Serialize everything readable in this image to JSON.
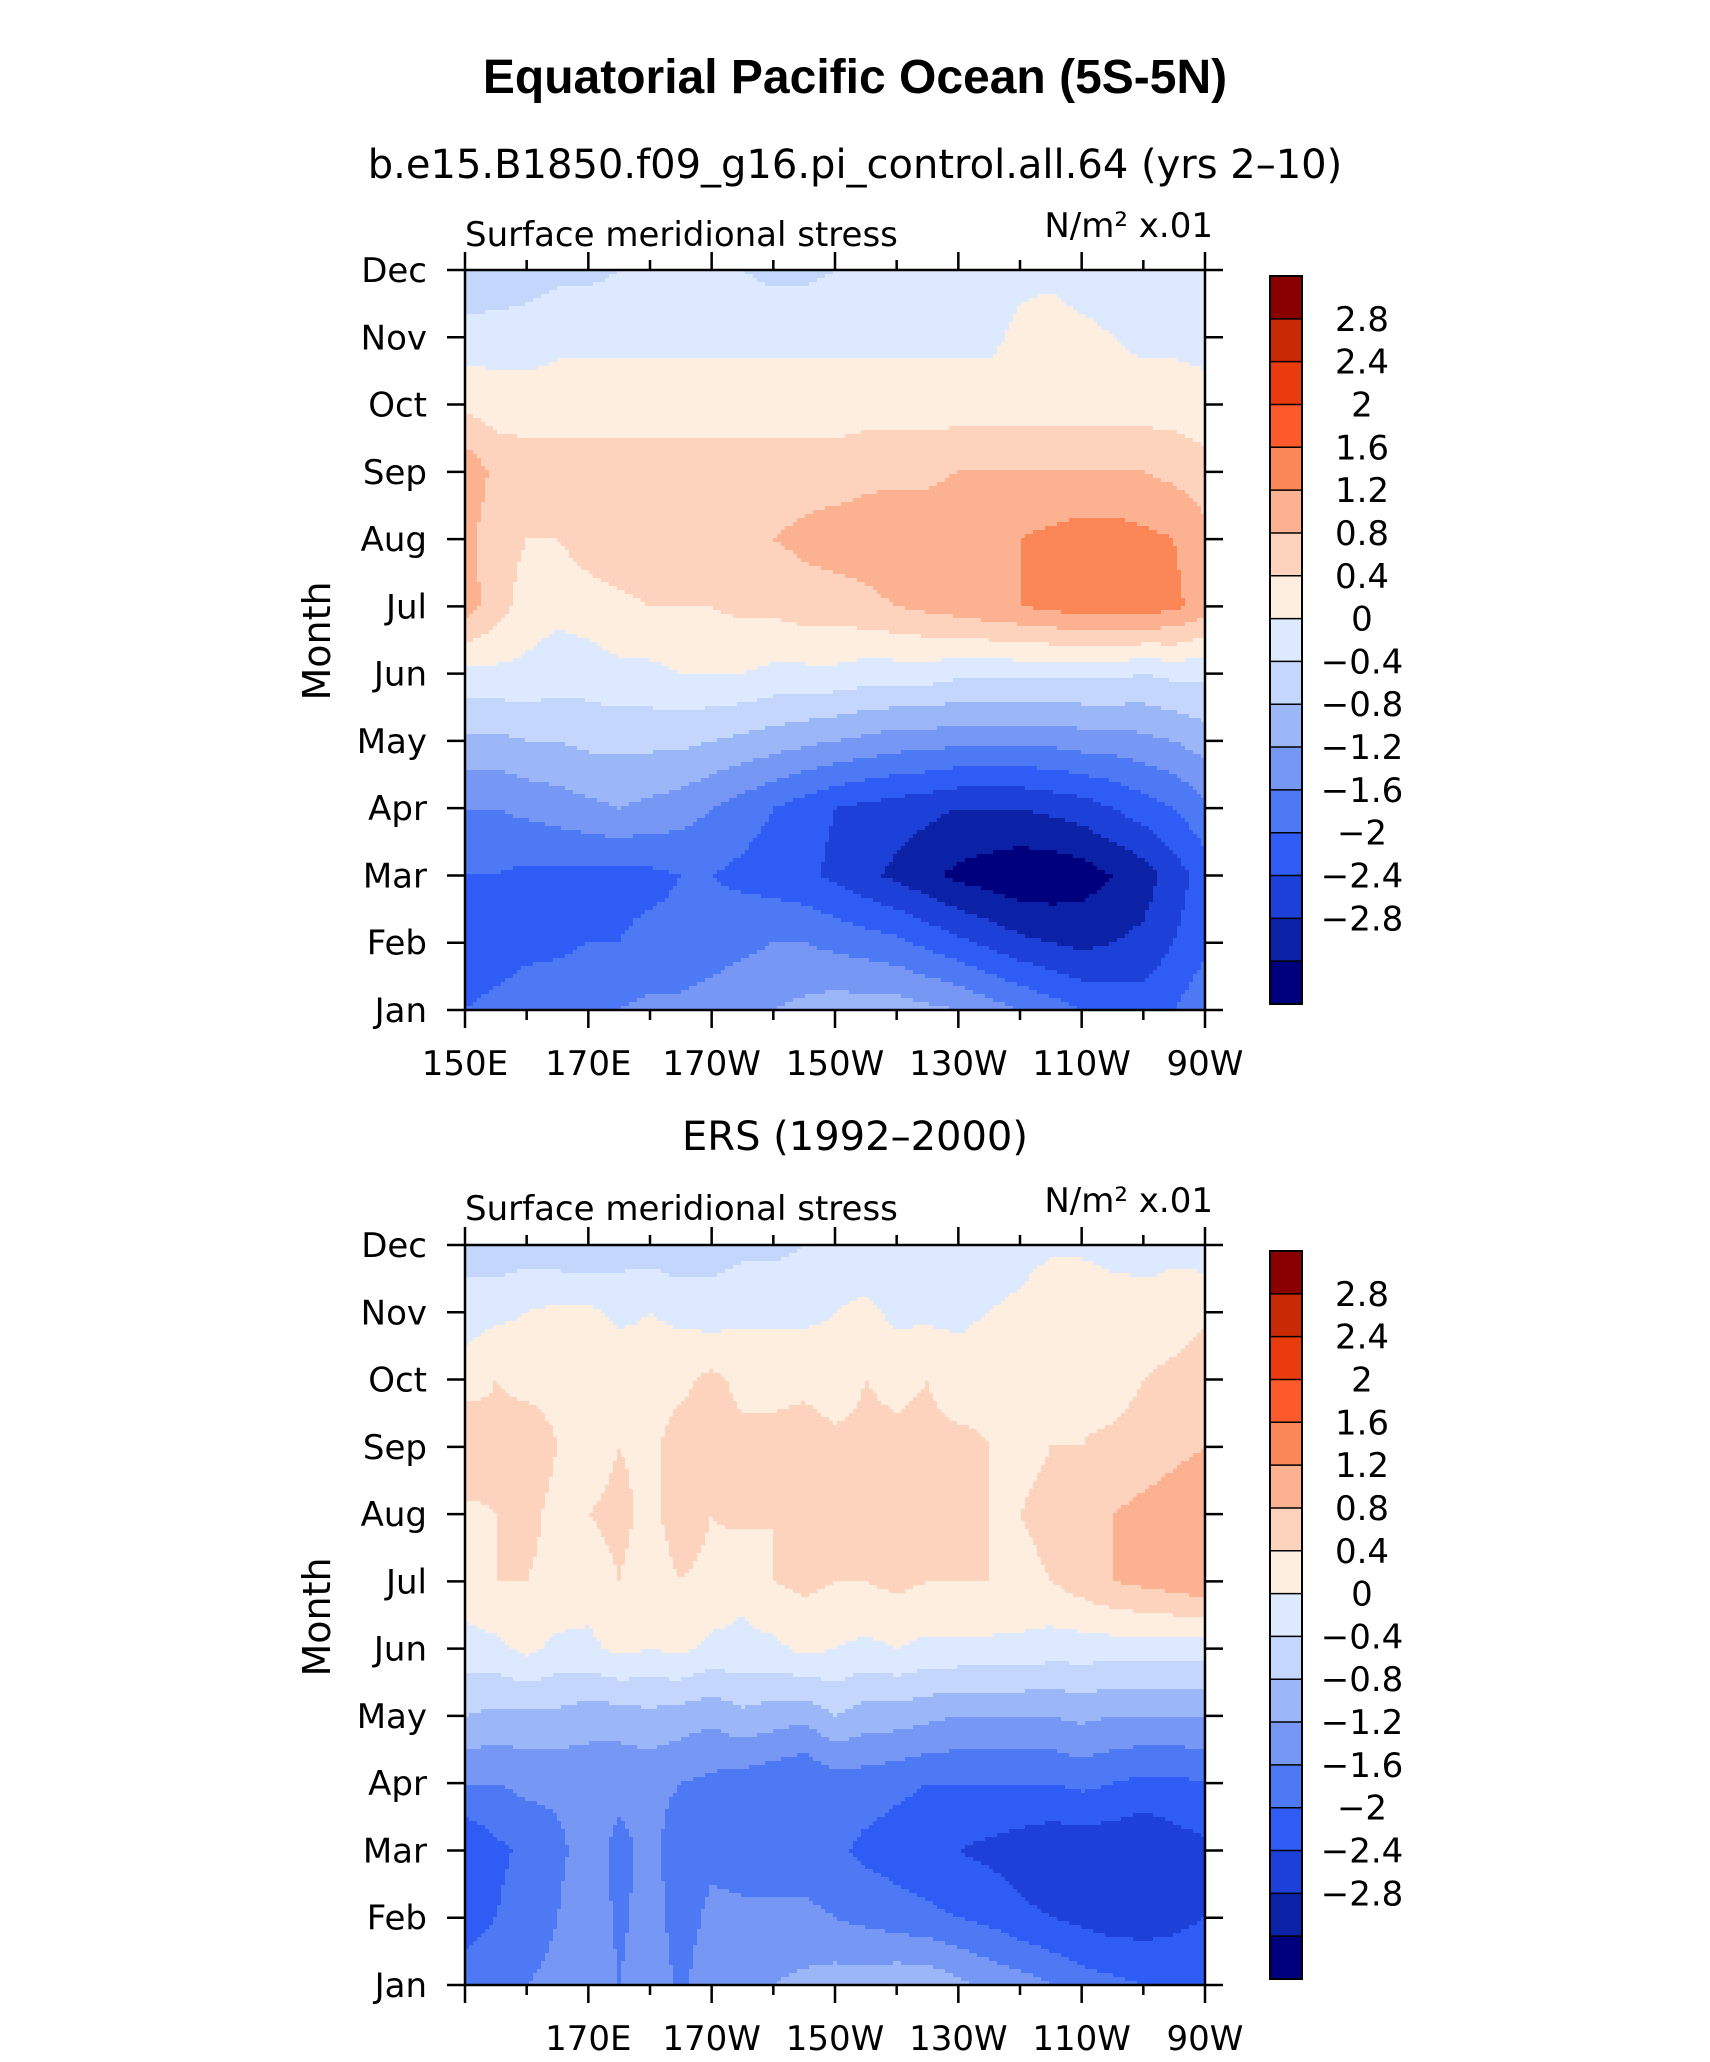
{
  "title": "Equatorial Pacific Ocean (5S-5N)",
  "colors": [
    "#00007f",
    "#0b21a6",
    "#1d40d8",
    "#2f5cf4",
    "#4d7af4",
    "#7698f4",
    "#9bb7f8",
    "#c4d6fc",
    "#dde9fe",
    "#feeee0",
    "#fdd3bd",
    "#fcb191",
    "#fb8656",
    "#fc5a2b",
    "#e93b0c",
    "#c92a06",
    "#8a0000"
  ],
  "chart_data": [
    {
      "type": "heatmap",
      "subtitle": "b.e15.B1850.f09_g16.pi_control.all.64 (yrs 2–10)",
      "left_label": "Surface meridional stress",
      "right_label": "N/m² x.01",
      "xlabel": "",
      "ylabel": "Month",
      "x_tick_labels": [
        "150E",
        "170E",
        "170W",
        "150W",
        "130W",
        "110W",
        "90W"
      ],
      "y_tick_labels": [
        "Jan",
        "Feb",
        "Mar",
        "Apr",
        "May",
        "Jun",
        "Jul",
        "Aug",
        "Sep",
        "Oct",
        "Nov",
        "Dec"
      ],
      "x": [
        150,
        155,
        160,
        165,
        170,
        175,
        180,
        185,
        190,
        195,
        200,
        205,
        210,
        215,
        220,
        225,
        230,
        235,
        240,
        245,
        250,
        255,
        260,
        265,
        270
      ],
      "xlim": [
        150,
        270
      ],
      "levels_labels": [
        "2.8",
        "2.4",
        "2",
        "1.6",
        "1.2",
        "0.8",
        "0.4",
        "0",
        "−0.4",
        "−0.8",
        "−1.2",
        "−1.6",
        "−2",
        "−2.4",
        "−2.8"
      ],
      "values": [
        [
          -1.6,
          -1.5,
          -1.4,
          -1.3,
          -1.2,
          -1.2,
          -1.1,
          -1.1,
          -1.0,
          -0.9,
          -0.8,
          -0.7,
          -0.6,
          -0.6,
          -0.6,
          -0.7,
          -0.8,
          -1.0,
          -1.2,
          -1.4,
          -1.6,
          -1.7,
          -1.8,
          -1.6,
          -1.3
        ],
        [
          -1.8,
          -1.8,
          -1.7,
          -1.7,
          -1.6,
          -1.6,
          -1.5,
          -1.5,
          -1.4,
          -1.3,
          -1.2,
          -1.2,
          -1.3,
          -1.4,
          -1.5,
          -1.7,
          -1.9,
          -2.1,
          -2.3,
          -2.4,
          -2.5,
          -2.4,
          -2.3,
          -2.0,
          -1.7
        ],
        [
          -1.6,
          -1.6,
          -1.7,
          -1.7,
          -1.7,
          -1.7,
          -1.7,
          -1.6,
          -1.6,
          -1.7,
          -1.8,
          -1.9,
          -2.1,
          -2.3,
          -2.5,
          -2.7,
          -2.9,
          -3.0,
          -3.1,
          -3.1,
          -3.0,
          -2.8,
          -2.6,
          -2.2,
          -1.8
        ],
        [
          -1.2,
          -1.2,
          -1.1,
          -1.0,
          -0.9,
          -0.8,
          -0.9,
          -1.0,
          -1.2,
          -1.4,
          -1.6,
          -1.8,
          -2.0,
          -2.1,
          -2.2,
          -2.3,
          -2.4,
          -2.4,
          -2.4,
          -2.3,
          -2.2,
          -2.0,
          -1.8,
          -1.6,
          -1.3
        ],
        [
          -0.5,
          -0.5,
          -0.4,
          -0.4,
          -0.3,
          -0.3,
          -0.3,
          -0.3,
          -0.4,
          -0.5,
          -0.6,
          -0.7,
          -0.8,
          -0.9,
          -1.0,
          -1.0,
          -1.1,
          -1.1,
          -1.1,
          -1.1,
          -1.0,
          -1.0,
          -0.9,
          -0.8,
          -0.6
        ],
        [
          0.3,
          0.3,
          0.3,
          0.2,
          0.2,
          0.3,
          0.3,
          0.4,
          0.4,
          0.4,
          0.3,
          0.3,
          0.3,
          0.2,
          0.2,
          0.2,
          0.1,
          0.1,
          0.1,
          0.1,
          0.1,
          0.1,
          0.0,
          0.1,
          0.1
        ],
        [
          1.4,
          1.0,
          0.6,
          0.5,
          0.6,
          0.7,
          0.8,
          0.8,
          0.8,
          0.9,
          0.9,
          1.0,
          1.0,
          1.1,
          1.2,
          1.3,
          1.4,
          1.5,
          1.6,
          1.7,
          1.8,
          1.8,
          1.8,
          1.7,
          1.4
        ],
        [
          1.3,
          1.0,
          0.8,
          0.8,
          1.0,
          1.1,
          1.1,
          1.1,
          1.1,
          1.1,
          1.2,
          1.3,
          1.4,
          1.4,
          1.5,
          1.5,
          1.6,
          1.6,
          1.6,
          1.7,
          1.8,
          1.8,
          1.7,
          1.6,
          1.3
        ],
        [
          1.5,
          1.1,
          1.0,
          1.0,
          1.0,
          1.0,
          1.0,
          1.0,
          1.0,
          1.0,
          1.0,
          1.0,
          1.0,
          1.1,
          1.1,
          1.1,
          1.2,
          1.2,
          1.2,
          1.2,
          1.2,
          1.2,
          1.2,
          1.1,
          1.0
        ],
        [
          0.7,
          0.6,
          0.6,
          0.6,
          0.6,
          0.6,
          0.6,
          0.6,
          0.6,
          0.6,
          0.6,
          0.6,
          0.6,
          0.6,
          0.6,
          0.6,
          0.6,
          0.6,
          0.6,
          0.6,
          0.6,
          0.6,
          0.6,
          0.6,
          0.5
        ],
        [
          0.2,
          0.2,
          0.2,
          0.3,
          0.3,
          0.3,
          0.3,
          0.3,
          0.3,
          0.3,
          0.3,
          0.3,
          0.3,
          0.3,
          0.3,
          0.3,
          0.3,
          0.3,
          0.5,
          0.6,
          0.5,
          0.4,
          0.3,
          0.3,
          0.3
        ],
        [
          -0.4,
          -0.3,
          -0.2,
          -0.1,
          -0.1,
          0.0,
          0.0,
          0.1,
          0.1,
          0.0,
          -0.1,
          -0.1,
          0.0,
          0.1,
          0.1,
          0.1,
          0.2,
          0.2,
          0.3,
          0.3,
          0.2,
          0.2,
          0.2,
          0.2,
          0.2
        ]
      ]
    },
    {
      "type": "heatmap",
      "subtitle": "ERS (1992–2000)",
      "left_label": "Surface meridional stress",
      "right_label": "N/m² x.01",
      "xlabel": "",
      "ylabel": "Month",
      "x_tick_labels": [
        "170E",
        "170W",
        "150W",
        "130W",
        "110W",
        "90W"
      ],
      "y_tick_labels": [
        "Jan",
        "Feb",
        "Mar",
        "Apr",
        "May",
        "Jun",
        "Jul",
        "Aug",
        "Sep",
        "Oct",
        "Nov",
        "Dec"
      ],
      "x": [
        150,
        155,
        160,
        165,
        170,
        175,
        180,
        185,
        190,
        195,
        200,
        205,
        210,
        215,
        220,
        225,
        230,
        235,
        240,
        245,
        250,
        255,
        260,
        265,
        270
      ],
      "xlim": [
        150,
        270
      ],
      "levels_labels": [
        "2.8",
        "2.4",
        "2",
        "1.6",
        "1.2",
        "0.8",
        "0.4",
        "0",
        "−0.4",
        "−0.8",
        "−1.2",
        "−1.6",
        "−2",
        "−2.4",
        "−2.8"
      ],
      "values": [
        [
          -1.4,
          -1.3,
          -1.2,
          -1.1,
          -0.8,
          -1.2,
          -0.9,
          -1.3,
          -0.9,
          -0.8,
          -0.8,
          -0.7,
          -0.6,
          -0.6,
          -0.5,
          -0.5,
          -0.7,
          -0.9,
          -1.0,
          -1.2,
          -1.4,
          -1.5,
          -1.6,
          -1.7,
          -1.6
        ],
        [
          -1.8,
          -1.6,
          -1.4,
          -1.2,
          -0.9,
          -1.3,
          -1.0,
          -1.4,
          -1.1,
          -1.1,
          -1.1,
          -1.1,
          -1.2,
          -1.3,
          -1.4,
          -1.5,
          -1.6,
          -1.7,
          -1.9,
          -2.0,
          -2.1,
          -2.2,
          -2.2,
          -2.1,
          -2.0
        ],
        [
          -2.0,
          -1.7,
          -1.5,
          -1.3,
          -1.0,
          -1.3,
          -1.1,
          -1.4,
          -1.3,
          -1.4,
          -1.4,
          -1.4,
          -1.5,
          -1.7,
          -1.8,
          -1.9,
          -2.0,
          -2.1,
          -2.2,
          -2.3,
          -2.3,
          -2.3,
          -2.4,
          -2.2,
          -2.1
        ],
        [
          -1.2,
          -1.2,
          -1.1,
          -1.1,
          -1.1,
          -1.1,
          -1.1,
          -1.2,
          -1.3,
          -1.4,
          -1.5,
          -1.6,
          -1.4,
          -1.4,
          -1.5,
          -1.6,
          -1.6,
          -1.6,
          -1.6,
          -1.6,
          -1.5,
          -1.6,
          -1.7,
          -1.7,
          -1.6
        ],
        [
          -0.4,
          -0.5,
          -0.5,
          -0.5,
          -0.6,
          -0.6,
          -0.5,
          -0.6,
          -0.7,
          -0.5,
          -0.6,
          -0.7,
          -0.4,
          -0.6,
          -0.6,
          -0.7,
          -0.8,
          -0.8,
          -0.8,
          -0.8,
          -0.7,
          -0.8,
          -0.8,
          -0.8,
          -0.8
        ],
        [
          0.2,
          0.3,
          0.5,
          0.3,
          0.3,
          0.5,
          0.4,
          0.5,
          0.3,
          0.3,
          0.3,
          0.5,
          0.4,
          0.3,
          0.4,
          0.3,
          0.3,
          0.3,
          0.3,
          0.2,
          0.2,
          0.2,
          0.2,
          0.2,
          0.2
        ],
        [
          0.7,
          0.8,
          0.8,
          0.7,
          0.6,
          0.8,
          0.6,
          0.8,
          0.7,
          0.5,
          0.8,
          0.9,
          0.8,
          0.8,
          0.9,
          0.8,
          0.8,
          0.8,
          0.7,
          0.8,
          1.0,
          1.2,
          1.3,
          1.4,
          1.5
        ],
        [
          0.7,
          0.8,
          0.9,
          0.7,
          0.8,
          0.9,
          0.7,
          1.0,
          0.8,
          0.9,
          0.8,
          0.9,
          0.9,
          1.0,
          0.9,
          0.9,
          0.9,
          0.8,
          0.8,
          0.9,
          1.0,
          1.2,
          1.3,
          1.4,
          1.5
        ],
        [
          1.2,
          0.9,
          1.0,
          0.8,
          0.6,
          0.8,
          0.7,
          1.0,
          0.9,
          0.9,
          0.9,
          1.0,
          0.9,
          0.9,
          0.9,
          0.9,
          0.9,
          0.8,
          0.7,
          0.8,
          0.8,
          0.9,
          1.0,
          1.1,
          1.2
        ],
        [
          0.6,
          0.8,
          0.7,
          0.7,
          0.6,
          0.7,
          0.6,
          0.7,
          0.9,
          0.7,
          0.7,
          0.7,
          0.6,
          0.8,
          0.7,
          0.8,
          0.6,
          0.7,
          0.6,
          0.8,
          0.7,
          0.6,
          0.8,
          0.9,
          1.1
        ],
        [
          0.2,
          0.3,
          0.4,
          0.5,
          0.5,
          0.3,
          0.4,
          0.3,
          0.2,
          0.3,
          0.3,
          0.3,
          0.4,
          0.5,
          0.3,
          0.3,
          0.3,
          0.4,
          0.5,
          0.8,
          0.8,
          0.7,
          0.6,
          0.6,
          0.7
        ],
        [
          -0.2,
          -0.3,
          -0.2,
          -0.3,
          -0.4,
          -0.2,
          -0.2,
          -0.3,
          -0.2,
          -0.1,
          -0.1,
          0.0,
          0.1,
          0.1,
          0.1,
          0.2,
          0.1,
          0.2,
          0.2,
          0.3,
          0.3,
          0.2,
          0.2,
          0.3,
          0.2
        ]
      ]
    }
  ]
}
